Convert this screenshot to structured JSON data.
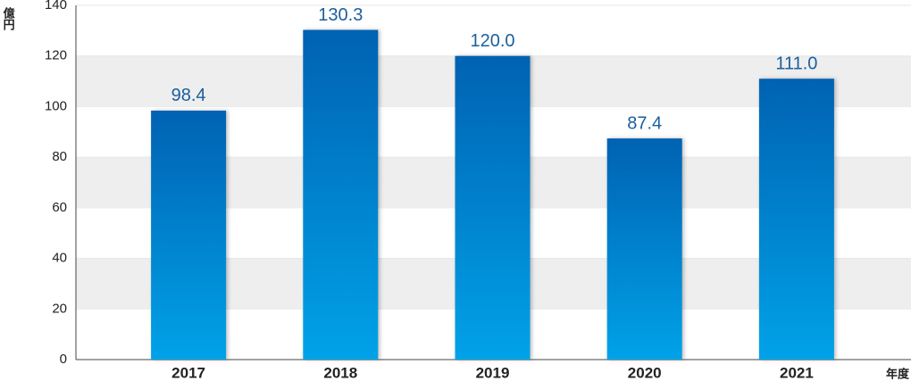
{
  "chart_data": {
    "type": "bar",
    "y_label": "億円",
    "x_label": "年度",
    "categories": [
      "2017",
      "2018",
      "2019",
      "2020",
      "2021"
    ],
    "values": [
      98.4,
      130.3,
      120.0,
      87.4,
      111.0
    ],
    "value_labels": [
      "98.4",
      "130.3",
      "120.0",
      "87.4",
      "111.0"
    ],
    "color": "#0a78c8",
    "ylim": [
      0,
      140
    ],
    "yticks": [
      0,
      20,
      40,
      60,
      80,
      100,
      120,
      140
    ],
    "grid": true
  }
}
